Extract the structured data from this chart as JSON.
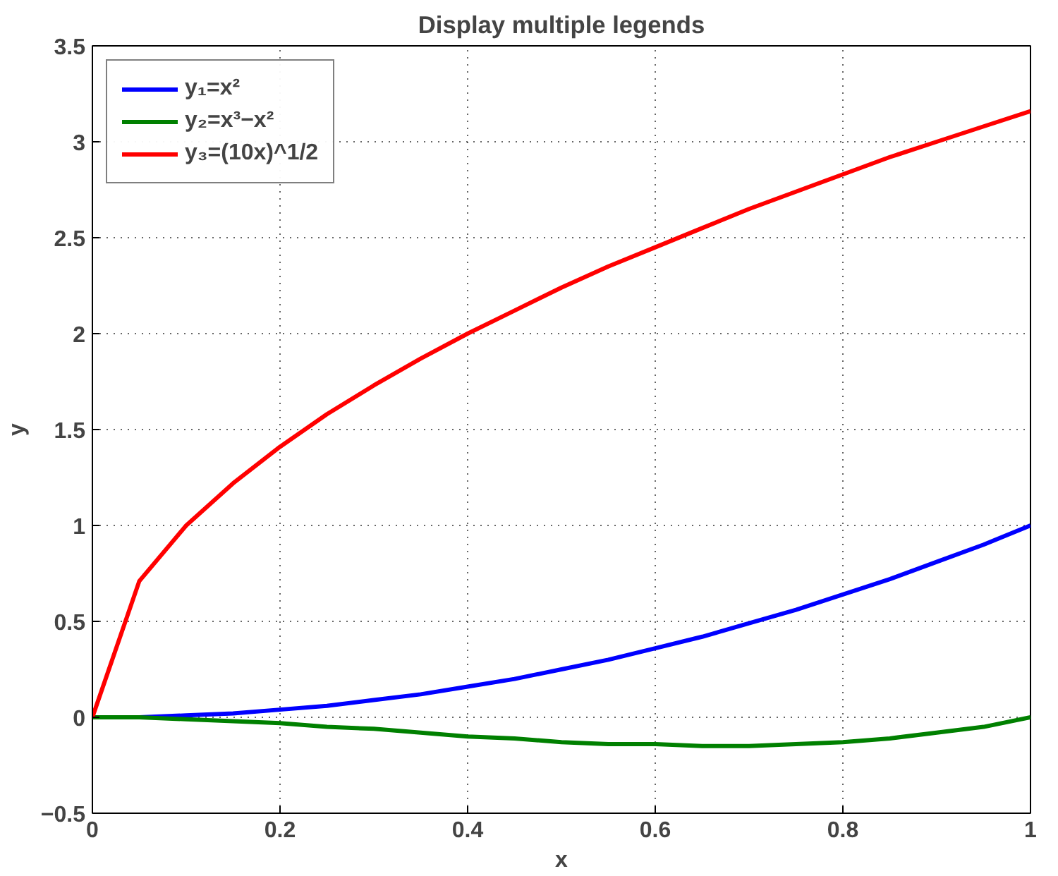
{
  "chart_data": {
    "type": "line",
    "title": "Display multiple legends",
    "xlabel": "x",
    "ylabel": "y",
    "x": [
      0,
      0.05,
      0.1,
      0.15,
      0.2,
      0.25,
      0.3,
      0.35,
      0.4,
      0.45,
      0.5,
      0.55,
      0.6,
      0.65,
      0.7,
      0.75,
      0.8,
      0.85,
      0.9,
      0.95,
      1
    ],
    "series": [
      {
        "name": "y₁=x²",
        "color": "#0000ff",
        "values": [
          0,
          0,
          0.01,
          0.02,
          0.04,
          0.06,
          0.09,
          0.12,
          0.16,
          0.2,
          0.25,
          0.3,
          0.36,
          0.42,
          0.49,
          0.56,
          0.64,
          0.72,
          0.81,
          0.9,
          1
        ]
      },
      {
        "name": "y₂=x³−x²",
        "color": "#008000",
        "values": [
          0,
          0,
          -0.01,
          -0.02,
          -0.03,
          -0.05,
          -0.06,
          -0.08,
          -0.1,
          -0.11,
          -0.13,
          -0.14,
          -0.14,
          -0.15,
          -0.15,
          -0.14,
          -0.13,
          -0.11,
          -0.08,
          -0.05,
          0
        ]
      },
      {
        "name": "y₃=(10x)^1/2",
        "color": "#ff0000",
        "values": [
          0,
          0.71,
          1,
          1.22,
          1.41,
          1.58,
          1.73,
          1.87,
          2,
          2.12,
          2.24,
          2.35,
          2.45,
          2.55,
          2.65,
          2.74,
          2.83,
          2.92,
          3,
          3.08,
          3.16
        ]
      }
    ],
    "xlim": [
      0,
      1
    ],
    "ylim": [
      -0.5,
      3.5
    ],
    "xticks": [
      0,
      0.2,
      0.4,
      0.6,
      0.8,
      1
    ],
    "yticks": [
      {
        "value": -0.5,
        "label": "−0.5"
      },
      0,
      0.5,
      1,
      1.5,
      2,
      2.5,
      3,
      3.5
    ],
    "grid": true,
    "legend": "top left",
    "line_style": "solid",
    "marker": "none"
  }
}
